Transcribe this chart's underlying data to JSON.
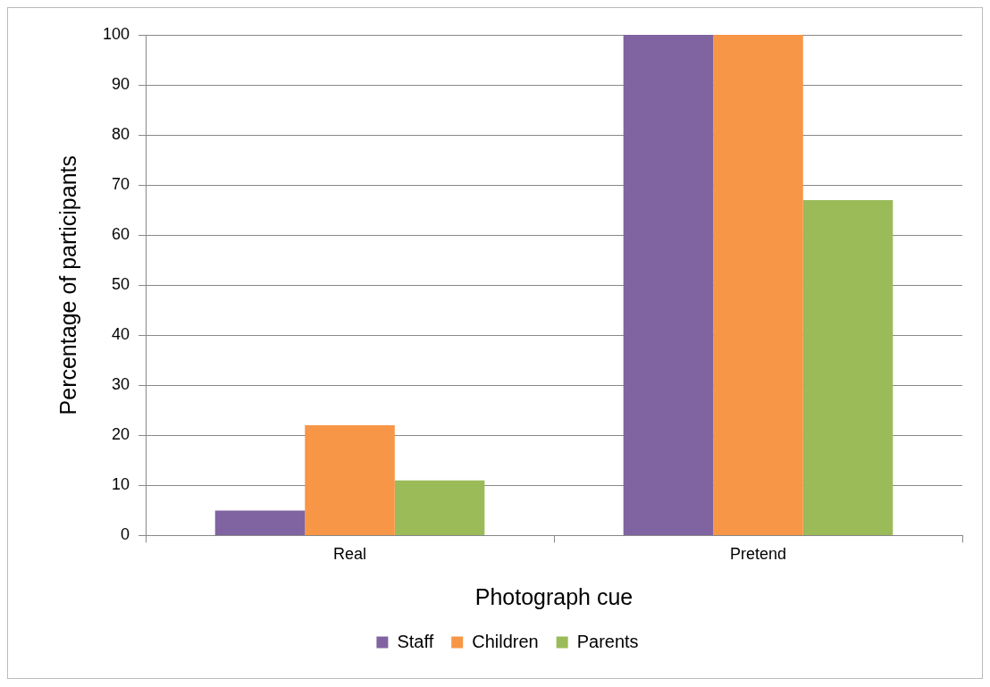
{
  "chart_data": {
    "type": "bar",
    "xlabel": "Photograph cue",
    "ylabel": "Percentage of participants",
    "categories": [
      "Real",
      "Pretend"
    ],
    "series": [
      {
        "name": "Staff",
        "color": "#8064a2",
        "values": [
          5,
          100
        ]
      },
      {
        "name": "Children",
        "color": "#f79646",
        "values": [
          22,
          100
        ]
      },
      {
        "name": "Parents",
        "color": "#9bbb59",
        "values": [
          11,
          67
        ]
      }
    ],
    "ylim": [
      0,
      100
    ],
    "yticks": [
      0,
      10,
      20,
      30,
      40,
      50,
      60,
      70,
      80,
      90,
      100
    ],
    "grid": "y",
    "legend": "bottom"
  }
}
